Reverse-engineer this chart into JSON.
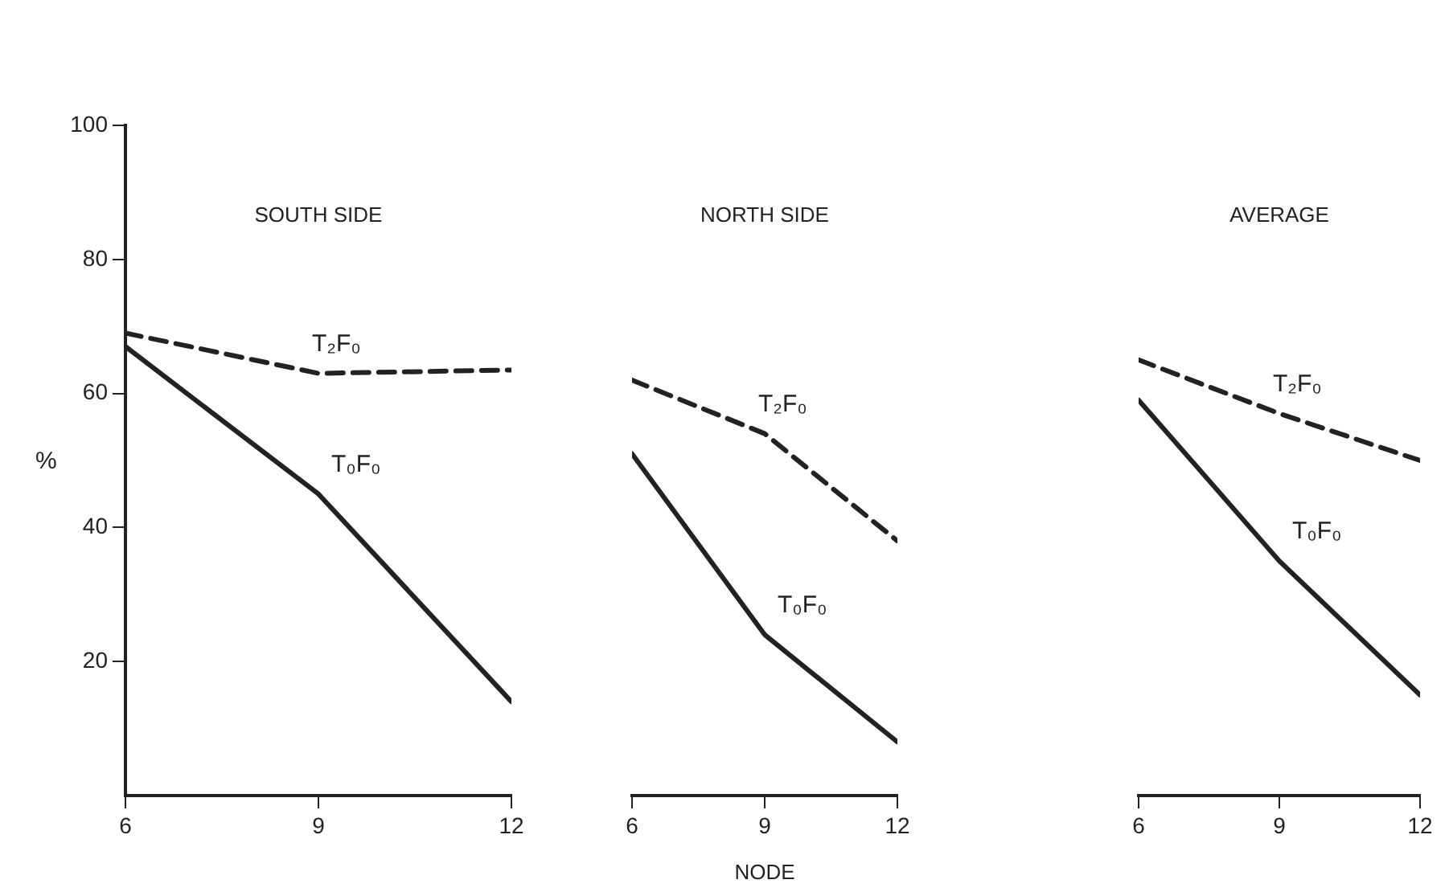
{
  "chart_data": [
    {
      "type": "line",
      "title": "SOUTH SIDE",
      "ylabel": "%",
      "x": [
        6,
        9,
        12
      ],
      "xlim": [
        6,
        12
      ],
      "xticks": [
        6,
        9,
        12
      ],
      "ylim": [
        0,
        100
      ],
      "yticks": [
        20,
        40,
        60,
        80,
        100
      ],
      "series": [
        {
          "name": "T₂F₀",
          "color": "#222222",
          "line_style": "dashed",
          "values": [
            69,
            63,
            63.5
          ]
        },
        {
          "name": "T₀F₀",
          "color": "#222222",
          "line_style": "solid",
          "values": [
            67,
            45,
            14
          ]
        }
      ]
    },
    {
      "type": "line",
      "title": "NORTH SIDE",
      "xlabel": "NODE",
      "x": [
        6,
        9,
        12
      ],
      "xlim": [
        6,
        12
      ],
      "xticks": [
        6,
        9,
        12
      ],
      "ylim": [
        0,
        100
      ],
      "tick_labels": "x",
      "series": [
        {
          "name": "T₂F₀",
          "color": "#222222",
          "line_style": "dashed",
          "values": [
            62,
            54,
            38
          ]
        },
        {
          "name": "T₀F₀",
          "color": "#222222",
          "line_style": "solid",
          "values": [
            51,
            24,
            8
          ]
        }
      ]
    },
    {
      "type": "line",
      "title": "AVERAGE",
      "x": [
        6,
        9,
        12
      ],
      "xlim": [
        6,
        12
      ],
      "xticks": [
        6,
        9,
        12
      ],
      "ylim": [
        0,
        100
      ],
      "tick_labels": "x",
      "series": [
        {
          "name": "T₂F₀",
          "color": "#222222",
          "line_style": "dashed",
          "values": [
            65,
            57,
            50
          ]
        },
        {
          "name": "T₀F₀",
          "color": "#222222",
          "line_style": "solid",
          "values": [
            59,
            35,
            15
          ]
        }
      ]
    }
  ]
}
